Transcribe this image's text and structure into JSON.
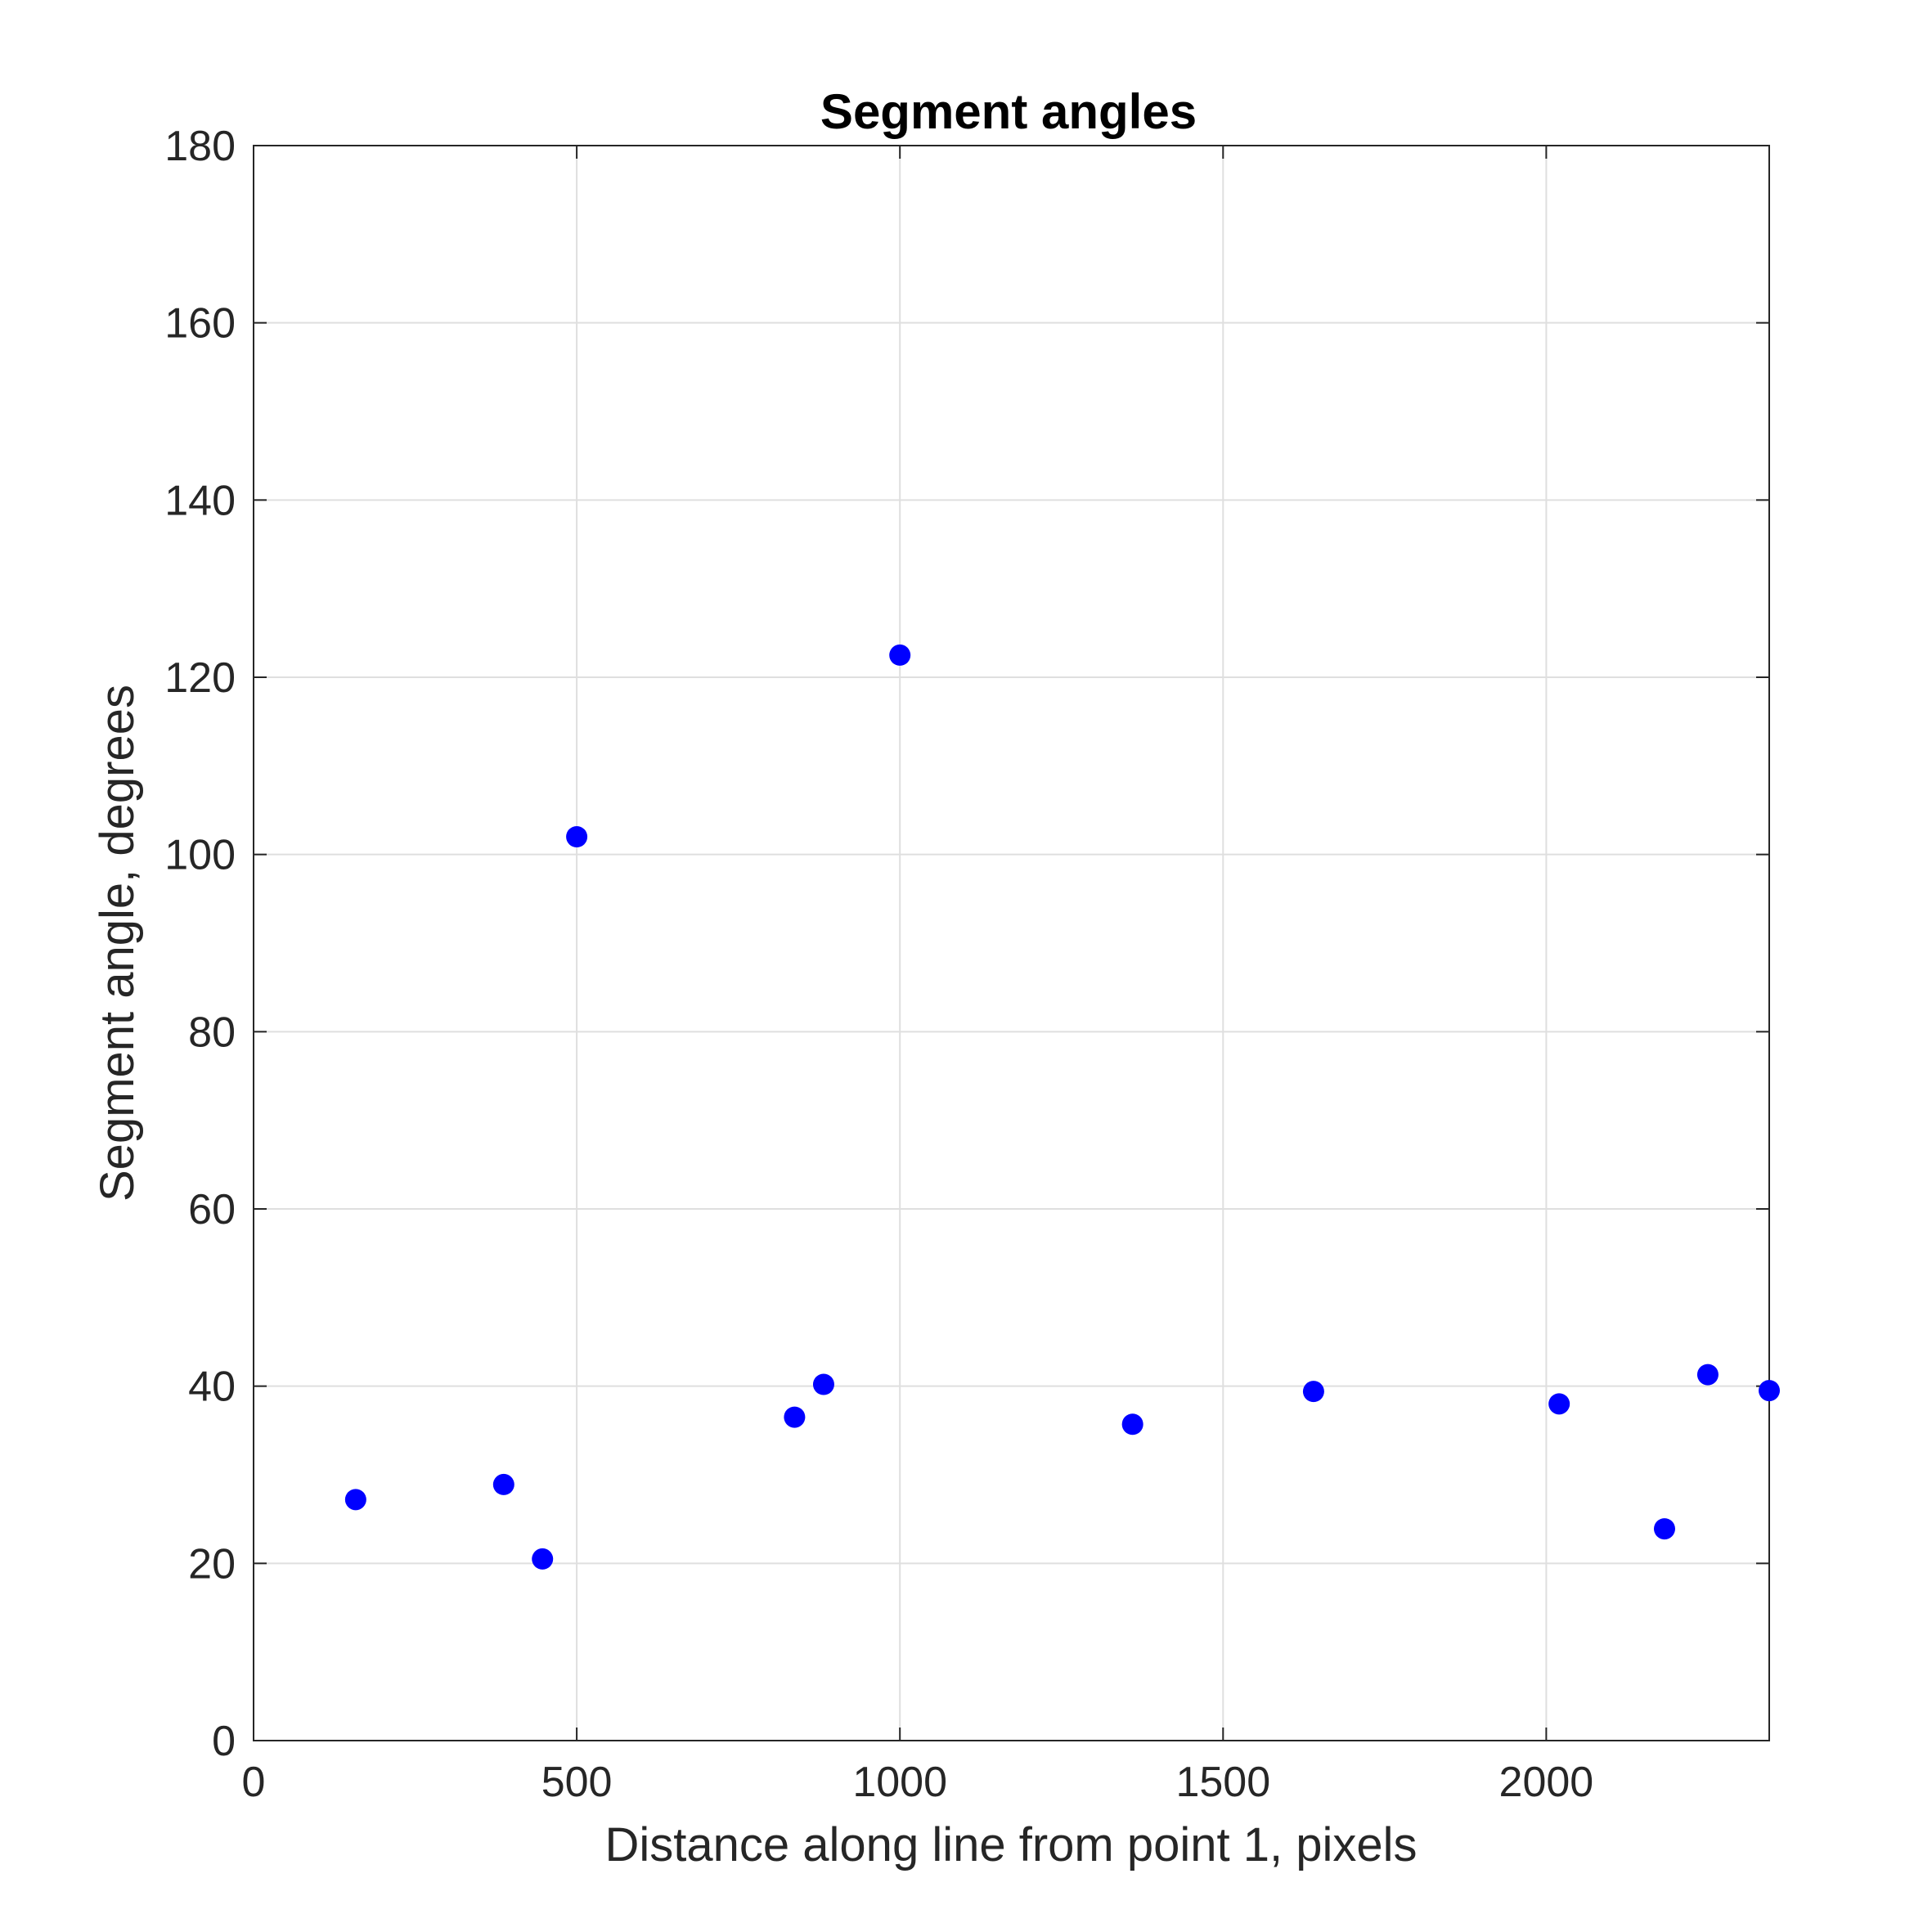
{
  "chart_data": {
    "type": "scatter",
    "title": "Segment angles",
    "xlabel": "Distance along line from point 1, pixels",
    "ylabel": "Segment angle, degrees",
    "xlim": [
      0,
      2345
    ],
    "ylim": [
      0,
      180
    ],
    "xticks": [
      0,
      500,
      1000,
      1500,
      2000
    ],
    "yticks": [
      0,
      20,
      40,
      60,
      80,
      100,
      120,
      140,
      160,
      180
    ],
    "grid": true,
    "marker_color": "#0000ff",
    "points": [
      {
        "x": 158,
        "y": 27.2
      },
      {
        "x": 387,
        "y": 28.9
      },
      {
        "x": 447,
        "y": 20.5
      },
      {
        "x": 500,
        "y": 102.0
      },
      {
        "x": 837,
        "y": 36.5
      },
      {
        "x": 882,
        "y": 40.2
      },
      {
        "x": 1000,
        "y": 122.5
      },
      {
        "x": 1360,
        "y": 35.7
      },
      {
        "x": 1640,
        "y": 39.4
      },
      {
        "x": 2020,
        "y": 38.0
      },
      {
        "x": 2183,
        "y": 23.9
      },
      {
        "x": 2250,
        "y": 41.3
      },
      {
        "x": 2345,
        "y": 39.5
      }
    ]
  }
}
